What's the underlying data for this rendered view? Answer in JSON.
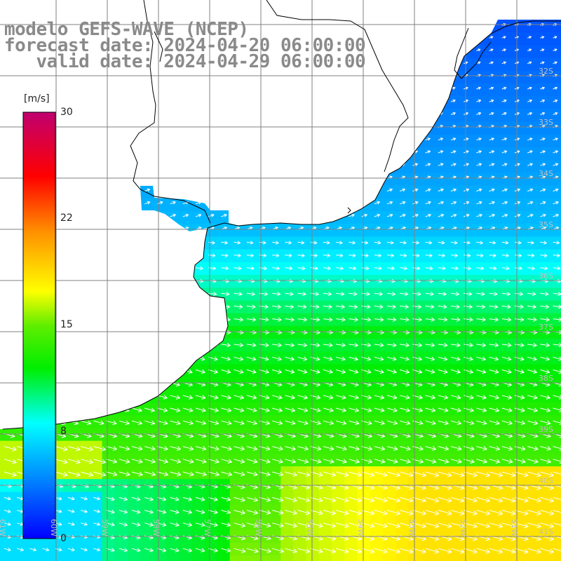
{
  "title_lines": [
    "modelo GEFS-WAVE (NCEP)",
    "forecast date: 2024-04-20 06:00:00",
    "   valid date: 2024-04-29 06:00:00"
  ],
  "colorbar": {
    "unit": "[m/s]",
    "ticks": [
      "30",
      "22",
      "15",
      "8",
      "0"
    ],
    "tick_values": [
      30,
      22,
      15,
      8,
      0
    ],
    "range": [
      0,
      30
    ],
    "colors": [
      "#0000ff",
      "#0090ff",
      "#00ffff",
      "#00e000",
      "#ffff00",
      "#ff9000",
      "#ff0000",
      "#c00070"
    ]
  },
  "lat_labels": [
    "32S",
    "33S",
    "34S",
    "35S",
    "36S",
    "37S",
    "38S",
    "39S",
    "40S",
    "41S"
  ],
  "lon_labels": [
    "61W",
    "60W",
    "59W",
    "58W",
    "57W",
    "56W",
    "55W",
    "54W",
    "53W",
    "52W",
    "51W"
  ],
  "colors": {
    "title": "#8a8a8a",
    "grid": "#808080",
    "coastline": "#000000",
    "land": "#ffffff",
    "arrows": "#ffffff"
  }
}
